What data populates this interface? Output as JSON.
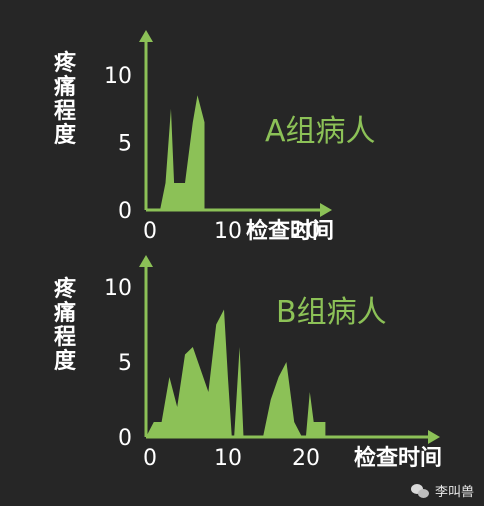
{
  "colors": {
    "background": "#262626",
    "accent": "#8cc157",
    "text": "#ffffff"
  },
  "watermark": {
    "text": "李叫兽",
    "icon": "wechat-icon"
  },
  "chart_data": [
    {
      "type": "area",
      "title": "A组病人",
      "ylabel": "疼痛程度",
      "xlabel": "检查时间",
      "xlim": [
        0,
        30
      ],
      "ylim": [
        0,
        10
      ],
      "xticks": [
        0,
        10,
        20
      ],
      "yticks": [
        0,
        5,
        10
      ],
      "grid": false,
      "series": [
        {
          "x": [
            0.8,
            1.8,
            2.5,
            3.2,
            3.6,
            4.5,
            5.0,
            6.0,
            6.6,
            7.5,
            7.5
          ],
          "y": [
            0,
            0,
            2,
            7.5,
            2,
            2,
            2,
            6.5,
            8.5,
            6.5,
            0
          ]
        }
      ]
    },
    {
      "type": "area",
      "title": "B组病人",
      "ylabel": "疼痛程度",
      "xlabel": "检查时间",
      "xlim": [
        0,
        30
      ],
      "ylim": [
        0,
        10
      ],
      "xticks": [
        0,
        10,
        20
      ],
      "yticks": [
        0,
        5,
        10
      ],
      "grid": false,
      "series": [
        {
          "x": [
            0,
            1,
            2,
            3,
            4,
            5,
            6,
            7,
            8,
            9,
            10,
            10.5,
            11,
            11.3,
            12,
            12.5,
            13,
            15,
            16,
            17,
            18,
            19,
            20,
            20.5,
            21,
            21.5,
            22,
            23,
            23
          ],
          "y": [
            0,
            1,
            1,
            4,
            2,
            5.5,
            6,
            4.5,
            3,
            7.5,
            8.5,
            4,
            0,
            0,
            6,
            0,
            0,
            0,
            2.5,
            4,
            5,
            1,
            0,
            0,
            3,
            1,
            1,
            1,
            0
          ]
        }
      ]
    }
  ]
}
